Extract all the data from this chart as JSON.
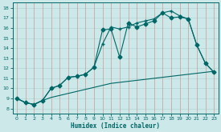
{
  "xlabel": "Humidex (Indice chaleur)",
  "background_color": "#cce8e8",
  "grid_color_h": "#b8d8d8",
  "grid_color_v": "#cc9999",
  "line_color": "#006666",
  "xlim": [
    -0.5,
    23.5
  ],
  "ylim": [
    7.5,
    18.5
  ],
  "xticks": [
    0,
    1,
    2,
    3,
    4,
    5,
    6,
    7,
    8,
    9,
    10,
    11,
    12,
    13,
    14,
    15,
    16,
    17,
    18,
    19,
    20,
    21,
    22,
    23
  ],
  "yticks": [
    8,
    9,
    10,
    11,
    12,
    13,
    14,
    15,
    16,
    17,
    18
  ],
  "line1_x": [
    0,
    1,
    2,
    3,
    4,
    5,
    6,
    7,
    8,
    9,
    10,
    11,
    12,
    13,
    14,
    15,
    16,
    17,
    18,
    19,
    20,
    21,
    22,
    23
  ],
  "line1_y": [
    9.0,
    8.6,
    8.4,
    8.8,
    10.0,
    10.3,
    11.1,
    11.2,
    11.4,
    12.1,
    15.8,
    15.9,
    13.1,
    16.5,
    16.1,
    16.4,
    16.7,
    17.5,
    17.0,
    17.1,
    16.9,
    14.3,
    12.5,
    11.6
  ],
  "line2_x": [
    0,
    1,
    2,
    3,
    4,
    5,
    6,
    7,
    8,
    9,
    10,
    11,
    12,
    13,
    14,
    15,
    16,
    17,
    18,
    19,
    20,
    21,
    22,
    23
  ],
  "line2_y": [
    9.0,
    8.6,
    8.4,
    8.8,
    10.0,
    10.3,
    11.1,
    11.2,
    11.4,
    12.1,
    14.4,
    16.1,
    15.9,
    16.1,
    16.5,
    16.7,
    16.9,
    17.5,
    17.7,
    17.2,
    16.9,
    14.3,
    12.5,
    11.6
  ],
  "line3_x": [
    0,
    1,
    2,
    3,
    4,
    5,
    6,
    7,
    8,
    9,
    10,
    11,
    12,
    13,
    14,
    15,
    16,
    17,
    18,
    19,
    20,
    21,
    22,
    23
  ],
  "line3_y": [
    9.0,
    8.6,
    8.4,
    8.8,
    9.1,
    9.3,
    9.5,
    9.7,
    9.9,
    10.1,
    10.3,
    10.5,
    10.6,
    10.7,
    10.8,
    10.9,
    11.0,
    11.1,
    11.2,
    11.3,
    11.4,
    11.5,
    11.6,
    11.7
  ]
}
